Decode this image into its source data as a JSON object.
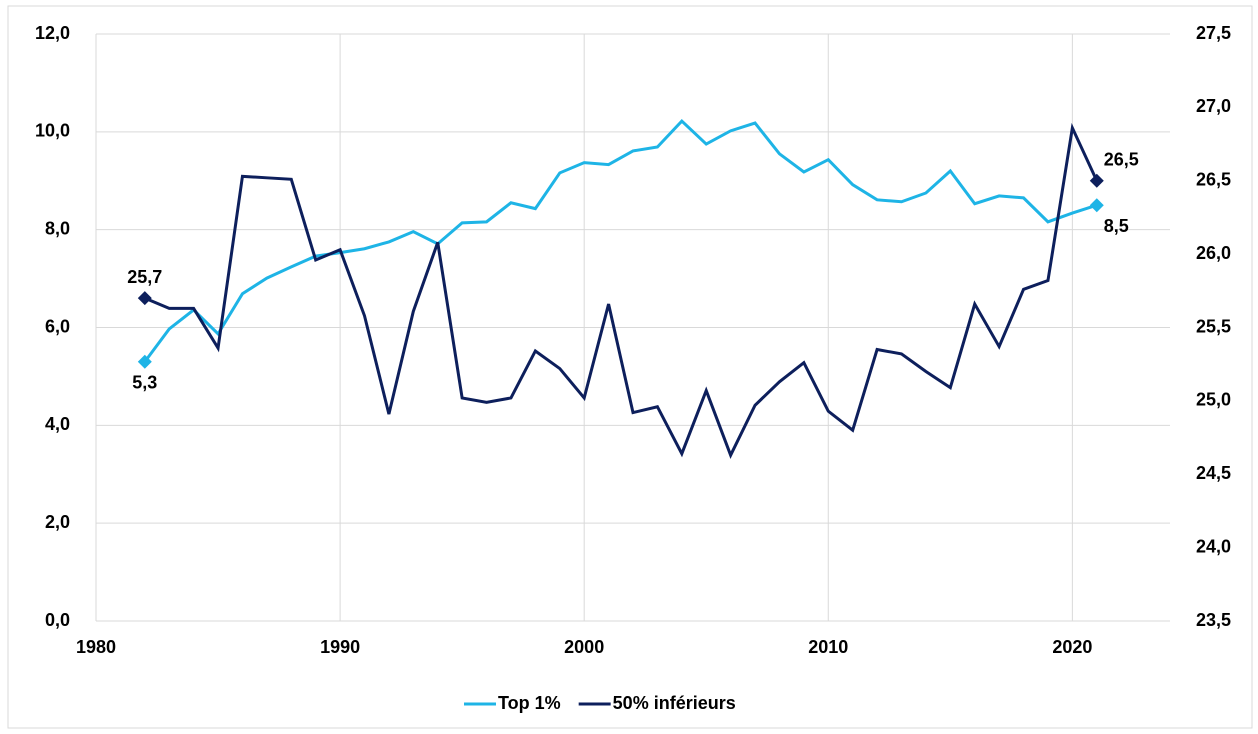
{
  "chart_data": {
    "type": "line",
    "x": [
      1982,
      1983,
      1984,
      1985,
      1986,
      1987,
      1988,
      1989,
      1990,
      1991,
      1992,
      1993,
      1994,
      1995,
      1996,
      1997,
      1998,
      1999,
      2000,
      2001,
      2002,
      2003,
      2004,
      2005,
      2006,
      2007,
      2008,
      2009,
      2010,
      2011,
      2012,
      2013,
      2014,
      2015,
      2016,
      2017,
      2018,
      2019,
      2020,
      2021
    ],
    "series": [
      {
        "name": "Top 1%",
        "color": "#1eb4e6",
        "axis": "y",
        "values": [
          5.3,
          5.97,
          6.36,
          5.87,
          6.69,
          7.01,
          7.24,
          7.46,
          7.53,
          7.61,
          7.75,
          7.96,
          7.71,
          8.14,
          8.16,
          8.55,
          8.43,
          9.16,
          9.37,
          9.33,
          9.61,
          9.69,
          10.22,
          9.75,
          10.02,
          10.18,
          9.55,
          9.18,
          9.43,
          8.92,
          8.61,
          8.57,
          8.75,
          9.2,
          8.53,
          8.69,
          8.65,
          8.16,
          8.34,
          8.5
        ],
        "value_labels": [
          "5,3",
          null,
          null,
          null,
          null,
          null,
          null,
          null,
          null,
          null,
          null,
          null,
          null,
          null,
          null,
          null,
          null,
          null,
          null,
          null,
          null,
          null,
          null,
          null,
          null,
          null,
          null,
          null,
          null,
          null,
          null,
          null,
          null,
          null,
          null,
          null,
          null,
          null,
          null,
          "8,5"
        ]
      },
      {
        "name": "50% inférieurs",
        "color": "#0d1f5c",
        "axis": "y2",
        "values": [
          25.7,
          25.63,
          25.63,
          25.36,
          26.53,
          26.52,
          26.51,
          25.96,
          26.03,
          25.58,
          24.91,
          25.61,
          26.08,
          25.02,
          24.99,
          25.02,
          25.34,
          25.22,
          25.02,
          25.66,
          24.92,
          24.96,
          24.64,
          25.07,
          24.63,
          24.97,
          25.13,
          25.26,
          24.93,
          24.8,
          25.35,
          25.32,
          25.2,
          25.09,
          25.66,
          25.37,
          25.76,
          25.82,
          26.86,
          26.5
        ],
        "value_labels": [
          "25,7",
          null,
          null,
          null,
          null,
          null,
          null,
          null,
          null,
          null,
          null,
          null,
          null,
          null,
          null,
          null,
          null,
          null,
          null,
          null,
          null,
          null,
          null,
          null,
          null,
          null,
          null,
          null,
          null,
          null,
          null,
          null,
          null,
          null,
          null,
          null,
          null,
          null,
          null,
          "26,5"
        ]
      }
    ],
    "xlim": [
      1980,
      2024
    ],
    "xticks": [
      1980,
      1990,
      2000,
      2010,
      2020
    ],
    "ylim": [
      0,
      12
    ],
    "yticks": [
      {
        "value": 0,
        "label": "0,0"
      },
      {
        "value": 2,
        "label": "2,0"
      },
      {
        "value": 4,
        "label": "4,0"
      },
      {
        "value": 6,
        "label": "6,0"
      },
      {
        "value": 8,
        "label": "8,0"
      },
      {
        "value": 10,
        "label": "10,0"
      },
      {
        "value": 12,
        "label": "12,0"
      }
    ],
    "y2lim": [
      23.5,
      27.5
    ],
    "y2ticks": [
      {
        "value": 23.5,
        "label": "23,5"
      },
      {
        "value": 24,
        "label": "24,0"
      },
      {
        "value": 24.5,
        "label": "24,5"
      },
      {
        "value": 25,
        "label": "25,0"
      },
      {
        "value": 25.5,
        "label": "25,5"
      },
      {
        "value": 26,
        "label": "26,0"
      },
      {
        "value": 26.5,
        "label": "26,5"
      },
      {
        "value": 27,
        "label": "27,0"
      },
      {
        "value": 27.5,
        "label": "27,5"
      }
    ],
    "grid": true,
    "legend": "bottom"
  }
}
